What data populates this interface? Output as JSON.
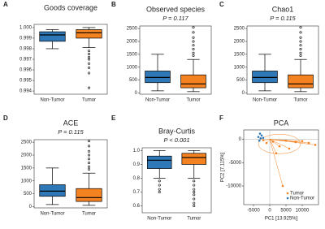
{
  "chart_data": [
    {
      "panel": "A",
      "type": "box",
      "title": "Goods coverage",
      "categories": [
        "Non-Tumor",
        "Tumor"
      ],
      "ylim": [
        0.9937,
        1.0003
      ],
      "yticks": [
        0.994,
        0.995,
        0.996,
        0.997,
        0.998,
        0.999,
        {
          "value": 1,
          "label": "1.000"
        }
      ],
      "boxes": [
        {
          "color": "#2e78b7",
          "min": 0.998,
          "q1": 0.9987,
          "median": 0.9993,
          "q3": 0.9996,
          "max": 0.9998,
          "outliers": []
        },
        {
          "color": "#f58220",
          "min": 0.9981,
          "q1": 0.999,
          "median": 0.9995,
          "q3": 0.9998,
          "max": 1,
          "outliers": [
            0.9978,
            0.9975,
            0.9972,
            0.997,
            0.9966,
            0.9962,
            0.9957,
            0.9943
          ]
        }
      ]
    },
    {
      "panel": "B",
      "type": "box",
      "title": "Observed species",
      "subtitle": "P = 0.117",
      "categories": [
        "Non-Tumor",
        "Tumor"
      ],
      "ylim": [
        -50,
        2600
      ],
      "yticks": [
        0,
        500,
        1000,
        1500,
        2000,
        2500
      ],
      "boxes": [
        {
          "color": "#2e78b7",
          "min": 80,
          "q1": 400,
          "median": 600,
          "q3": 850,
          "max": 1500,
          "outliers": []
        },
        {
          "color": "#f58220",
          "min": 50,
          "q1": 200,
          "median": 350,
          "q3": 700,
          "max": 1300,
          "outliers": [
            1450,
            1550,
            1700,
            1850,
            2000,
            2150,
            2350,
            2550
          ]
        }
      ]
    },
    {
      "panel": "C",
      "type": "box",
      "title": "Chao1",
      "subtitle": "P = 0.115",
      "categories": [
        "Non-Tumor",
        "Tumor"
      ],
      "ylim": [
        -50,
        2600
      ],
      "yticks": [
        0,
        500,
        1000,
        1500,
        2000,
        2500
      ],
      "boxes": [
        {
          "color": "#2e78b7",
          "min": 80,
          "q1": 400,
          "median": 600,
          "q3": 850,
          "max": 1500,
          "outliers": []
        },
        {
          "color": "#f58220",
          "min": 50,
          "q1": 200,
          "median": 350,
          "q3": 700,
          "max": 1300,
          "outliers": [
            1450,
            1550,
            1700,
            1850,
            2000,
            2150,
            2350,
            2550
          ]
        }
      ]
    },
    {
      "panel": "D",
      "type": "box",
      "title": "ACE",
      "subtitle": "P = 0.115",
      "categories": [
        "Non-Tumor",
        "Tumor"
      ],
      "ylim": [
        -50,
        2600
      ],
      "yticks": [
        0,
        500,
        1000,
        1500,
        2000,
        2500
      ],
      "boxes": [
        {
          "color": "#2e78b7",
          "min": 80,
          "q1": 400,
          "median": 600,
          "q3": 850,
          "max": 1500,
          "outliers": []
        },
        {
          "color": "#f58220",
          "min": 50,
          "q1": 200,
          "median": 350,
          "q3": 700,
          "max": 1300,
          "outliers": [
            1450,
            1550,
            1700,
            1850,
            2000,
            2150,
            2350,
            2550
          ]
        }
      ]
    },
    {
      "panel": "E",
      "type": "box",
      "title": "Bray-Curtis",
      "subtitle": "P < 0.001",
      "categories": [
        "Non-Tumor",
        "Tumor"
      ],
      "ylim": [
        0.55,
        1.02
      ],
      "yticks": [
        0.6,
        0.7,
        0.8,
        0.9,
        {
          "value": 1,
          "label": "1.0"
        }
      ],
      "boxes": [
        {
          "color": "#2e78b7",
          "min": 0.8,
          "q1": 0.87,
          "median": 0.93,
          "q3": 0.96,
          "max": 1,
          "outliers": [
            0.78,
            0.75,
            0.72,
            0.7
          ]
        },
        {
          "color": "#f58220",
          "min": 0.8,
          "q1": 0.9,
          "median": 0.95,
          "q3": 0.98,
          "max": 1,
          "outliers": [
            0.78,
            0.75,
            0.72,
            0.7,
            0.68,
            0.65,
            0.62,
            0.6
          ]
        }
      ]
    },
    {
      "panel": "F",
      "type": "scatter",
      "title": "PCA",
      "xlabel": "PC1 [13.925%]",
      "ylabel": "PC2 [7.115%]",
      "xlim": [
        -8000,
        15000
      ],
      "ylim": [
        -14000,
        2000
      ],
      "xticks": [
        -5000,
        0,
        5000,
        10000
      ],
      "yticks": [
        0,
        -5000,
        -10000
      ],
      "series": [
        {
          "name": "Tumor",
          "color": "#f58220",
          "x": [
            -2000,
            1000,
            3000,
            5000,
            8000,
            12000,
            14000,
            2000,
            6000,
            -1000,
            4000,
            10000
          ],
          "y": [
            -200,
            -500,
            -1500,
            -300,
            -600,
            -800,
            -1200,
            -3000,
            -2000,
            -800,
            -10000,
            -400
          ]
        },
        {
          "name": "Non-Tumor",
          "color": "#2e78b7",
          "x": [
            -3500,
            -3000,
            -2800,
            -2500,
            -3200,
            -2000
          ],
          "y": [
            500,
            1200,
            200,
            800,
            -300,
            300
          ]
        }
      ]
    }
  ]
}
